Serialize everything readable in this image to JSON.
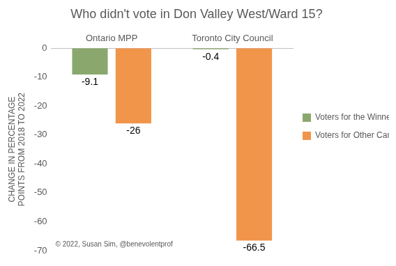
{
  "chart_data": {
    "type": "bar",
    "title": "Who didn't vote in Don Valley West/Ward 15?",
    "y_label": "CHANGE IN PERCENTAGE POINTS FROM 2018 TO 2022",
    "categories": [
      "Ontario MPP",
      "Toronto City Council"
    ],
    "series": [
      {
        "name": "Voters for the Winner",
        "color": "#8aa86e",
        "values": [
          -9.1,
          -0.4
        ]
      },
      {
        "name": "Voters for Other Candidates",
        "color": "#f0954a",
        "values": [
          -26,
          -66.5
        ]
      }
    ],
    "ylim": [
      -70,
      0
    ],
    "yticks": [
      -70,
      -60,
      -50,
      -40,
      -30,
      -20,
      -10,
      0
    ],
    "grid": false,
    "legend": "right",
    "data_labels": true,
    "annotations": [
      "© 2022, Susan Sim, @benevolentprof"
    ]
  }
}
